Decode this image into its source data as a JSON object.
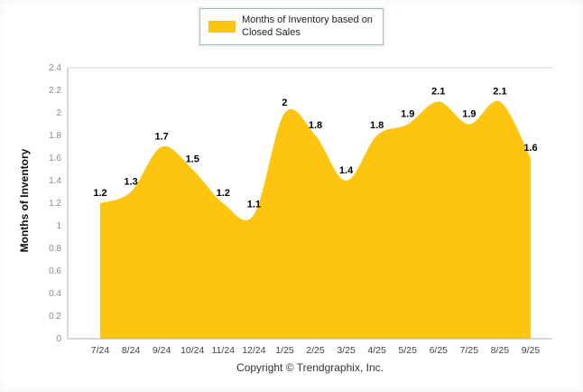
{
  "legend": {
    "label": "Months of Inventory based on Closed Sales"
  },
  "footer": {
    "copyright": "Copyright © Trendgraphix, Inc."
  },
  "chart_data": {
    "type": "area",
    "title": "",
    "categories": [
      "7/24",
      "8/24",
      "9/24",
      "10/24",
      "11/24",
      "12/24",
      "1/25",
      "2/25",
      "3/25",
      "4/25",
      "5/25",
      "6/25",
      "7/25",
      "8/25",
      "9/25"
    ],
    "values": [
      1.2,
      1.3,
      1.7,
      1.5,
      1.2,
      1.1,
      2,
      1.8,
      1.4,
      1.8,
      1.9,
      2.1,
      1.9,
      2.1,
      1.6
    ],
    "xlabel": "",
    "ylabel": "Months of Inventory",
    "ylim": [
      0,
      2.4
    ],
    "ytick_step": 0.2,
    "grid": "top-line-only",
    "legend_position": "top-center",
    "fill_color": "#FDC510",
    "axis_color": "#b0b0b0",
    "gridline_color": "#d6d6d6",
    "value_label_color": "#000000",
    "ytick_label_color": "#8a8a8a",
    "xtick_label_color": "#444444"
  }
}
